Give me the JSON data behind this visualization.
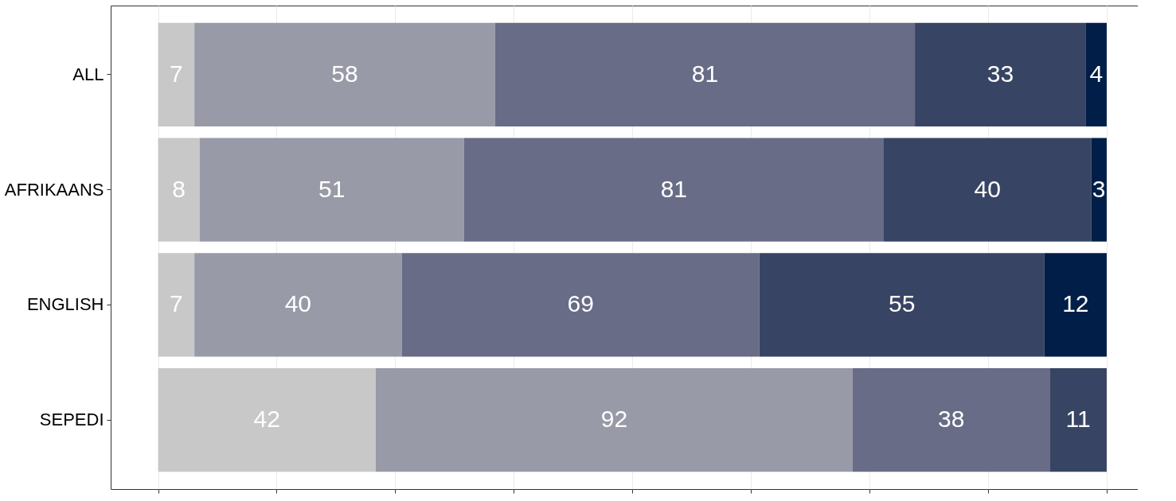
{
  "chart_data": {
    "type": "bar",
    "orientation": "horizontal",
    "stacked": true,
    "categories": [
      "ALL",
      "AFRIKAANS",
      "ENGLISH",
      "SEPEDI"
    ],
    "series": [
      {
        "color": "#c8c8c8",
        "values": [
          7,
          8,
          7,
          42
        ]
      },
      {
        "color": "#999aa7",
        "values": [
          58,
          51,
          40,
          92
        ]
      },
      {
        "color": "#686c87",
        "values": [
          81,
          81,
          69,
          38
        ]
      },
      {
        "color": "#384463",
        "values": [
          33,
          40,
          55,
          11
        ]
      },
      {
        "color": "#001e47",
        "values": [
          4,
          3,
          12,
          null
        ]
      }
    ],
    "xlim": [
      -9.15,
      189
    ],
    "xticks": [
      {
        "value": 0,
        "label": null
      },
      {
        "value": 22.875,
        "label": null
      },
      {
        "value": 45.75,
        "label": null
      },
      {
        "value": 68.625,
        "label": null
      },
      {
        "value": 91.5,
        "label": null
      },
      {
        "value": 114.375,
        "label": null
      },
      {
        "value": 137.25,
        "label": null
      },
      {
        "value": 160.125,
        "label": null
      },
      {
        "value": 183,
        "label": null
      }
    ],
    "tick_labels": "y",
    "grid": "x",
    "data_labels": true
  }
}
